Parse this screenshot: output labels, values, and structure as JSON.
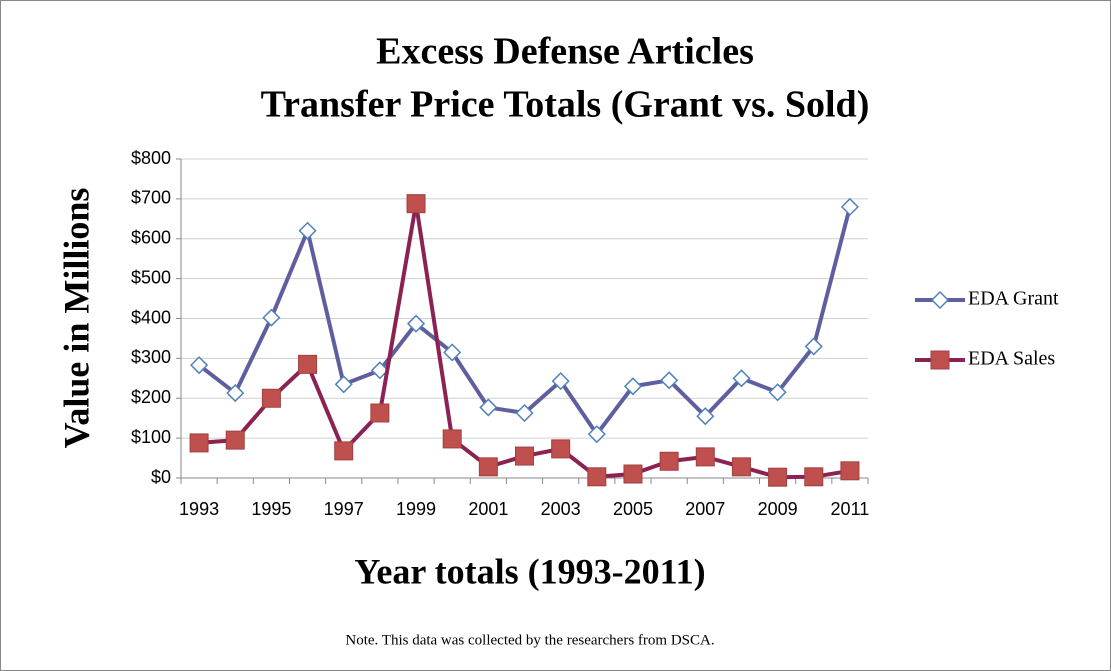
{
  "chart_data": {
    "type": "line",
    "title": [
      "Excess Defense Articles",
      "Transfer Price Totals (Grant vs. Sold)"
    ],
    "x_label": "Year totals (1993-2011)",
    "y_label": "Value in Millions",
    "note": "Note. This data was collected by the researchers from DSCA.",
    "categories": [
      "1993",
      null,
      "1995",
      null,
      "1997",
      null,
      "1999",
      null,
      "2001",
      null,
      "2003",
      null,
      "2005",
      null,
      "2007",
      null,
      "2009",
      null,
      "2011"
    ],
    "series": [
      {
        "name": "EDA Grant",
        "color": "#5f5f9f",
        "marker": "diamond",
        "marker_color": "#4f81bd",
        "values": [
          283,
          213,
          402,
          620,
          235,
          270,
          387,
          315,
          177,
          163,
          243,
          110,
          230,
          245,
          155,
          250,
          215,
          330,
          680
        ]
      },
      {
        "name": "EDA Sales",
        "color": "#8b2252",
        "marker": "square",
        "marker_color": "#c0504d",
        "values": [
          88,
          95,
          200,
          285,
          68,
          163,
          688,
          98,
          28,
          55,
          73,
          3,
          10,
          42,
          53,
          28,
          2,
          3,
          18
        ]
      }
    ],
    "ylim": [
      0,
      800
    ],
    "yticks": [
      {
        "value": 0,
        "label": "$0"
      },
      {
        "value": 100,
        "label": "$100"
      },
      {
        "value": 200,
        "label": "$200"
      },
      {
        "value": 300,
        "label": "$300"
      },
      {
        "value": 400,
        "label": "$400"
      },
      {
        "value": 500,
        "label": "$500"
      },
      {
        "value": 600,
        "label": "$600"
      },
      {
        "value": 700,
        "label": "$700"
      },
      {
        "value": 800,
        "label": "$800"
      }
    ],
    "grid": true,
    "legend": "right"
  }
}
